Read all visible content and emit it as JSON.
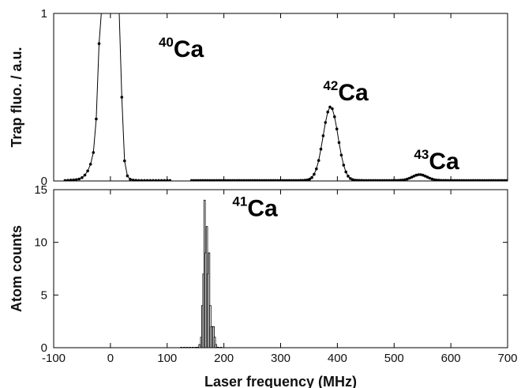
{
  "chart_data": [
    {
      "panel": "top",
      "type": "scatter",
      "ylabel": "Trap fluo. / a.u.",
      "xlim": [
        -100,
        700
      ],
      "ylim": [
        0,
        1
      ],
      "y_ticks": [
        "0",
        "1"
      ],
      "annotations": [
        {
          "sup": "40",
          "text": "Ca",
          "x": 85,
          "y": 0.74
        },
        {
          "sup": "42",
          "text": "Ca",
          "x": 375,
          "y": 0.48
        },
        {
          "sup": "43",
          "text": "Ca",
          "x": 535,
          "y": 0.07
        }
      ],
      "series": [
        {
          "segment_1": [
            [
              -80,
              0.003
            ],
            [
              -75,
              0.004
            ],
            [
              -70,
              0.005
            ],
            [
              -65,
              0.006
            ],
            [
              -60,
              0.008
            ],
            [
              -55,
              0.012
            ],
            [
              -50,
              0.02
            ],
            [
              -45,
              0.035
            ],
            [
              -40,
              0.06
            ],
            [
              -35,
              0.1
            ],
            [
              -30,
              0.17
            ],
            [
              -25,
              0.37
            ],
            [
              -20,
              0.82
            ],
            [
              -15,
              1.05
            ],
            [
              -10,
              1.2
            ],
            [
              -5,
              1.3
            ],
            [
              0,
              1.3
            ],
            [
              5,
              1.3
            ],
            [
              10,
              1.2
            ],
            [
              15,
              1.05
            ],
            [
              20,
              0.5
            ],
            [
              25,
              0.12
            ],
            [
              30,
              0.03
            ],
            [
              35,
              0.01
            ],
            [
              40,
              0.005
            ],
            [
              45,
              0.004
            ],
            [
              50,
              0.003
            ],
            [
              55,
              0.003
            ],
            [
              60,
              0.003
            ],
            [
              65,
              0.003
            ],
            [
              70,
              0.003
            ],
            [
              75,
              0.003
            ],
            [
              80,
              0.003
            ],
            [
              85,
              0.003
            ],
            [
              90,
              0.003
            ],
            [
              95,
              0.003
            ],
            [
              100,
              0.003
            ],
            [
              105,
              0.003
            ]
          ],
          "segment_2_peaks": [
            {
              "center": 388,
              "amplitude": 0.44,
              "width": 13
            },
            {
              "center": 545,
              "amplitude": 0.035,
              "width": 13
            }
          ],
          "segment_2_range": [
            143,
            700
          ],
          "segment_2_step": 4,
          "baseline": 0.003
        }
      ]
    },
    {
      "panel": "bottom",
      "type": "bar",
      "xlabel": "Laser frequency (MHz)",
      "ylabel": "Atom counts",
      "xlim": [
        -100,
        700
      ],
      "ylim": [
        0,
        15
      ],
      "x_ticks": [
        "-100",
        "0",
        "100",
        "200",
        "300",
        "400",
        "500",
        "600",
        "700"
      ],
      "y_ticks": [
        "0",
        "5",
        "10",
        "15"
      ],
      "annotations": [
        {
          "sup": "41",
          "text": "Ca",
          "x": 215,
          "y": 12.5
        }
      ],
      "bar_width": 2.5,
      "bars": [
        [
          125,
          0
        ],
        [
          130,
          0
        ],
        [
          135,
          0
        ],
        [
          140,
          0
        ],
        [
          145,
          0
        ],
        [
          150,
          0
        ],
        [
          152,
          0
        ],
        [
          155,
          0
        ],
        [
          157,
          0.3
        ],
        [
          160,
          1
        ],
        [
          162,
          4
        ],
        [
          164,
          7
        ],
        [
          166,
          14
        ],
        [
          168,
          9
        ],
        [
          170,
          11.5
        ],
        [
          172,
          7
        ],
        [
          174,
          9
        ],
        [
          176,
          4
        ],
        [
          178,
          2
        ],
        [
          180,
          2
        ],
        [
          182,
          2
        ],
        [
          184,
          1
        ],
        [
          186,
          0.3
        ],
        [
          188,
          0
        ],
        [
          190,
          0
        ],
        [
          195,
          0
        ]
      ]
    }
  ]
}
